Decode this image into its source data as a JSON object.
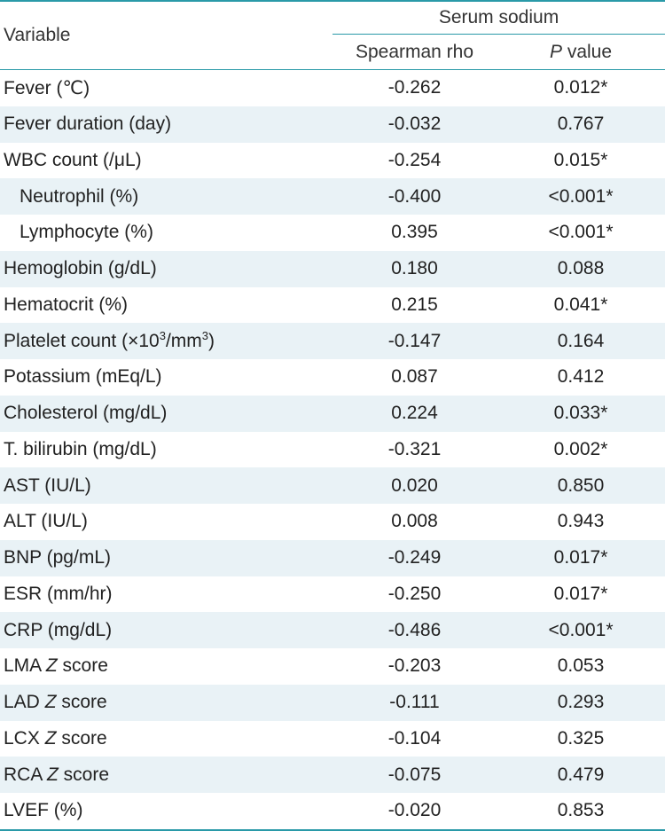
{
  "header": {
    "variable": "Variable",
    "group": "Serum sodium",
    "rho": "Spearman rho",
    "p_italic": "P",
    "p_rest": " value"
  },
  "rows": [
    {
      "pre": "Fever (℃)",
      "rho": "-0.262",
      "p": "0.012*"
    },
    {
      "pre": "Fever duration (day)",
      "rho": "-0.032",
      "p": "0.767"
    },
    {
      "pre": "WBC count (/μL)",
      "rho": "-0.254",
      "p": "0.015*"
    },
    {
      "pre": "Neutrophil (%)",
      "rho": "-0.400",
      "p": "<0.001*"
    },
    {
      "pre": "Lymphocyte (%)",
      "rho": "0.395",
      "p": "<0.001*"
    },
    {
      "pre": "Hemoglobin (g/dL)",
      "rho": "0.180",
      "p": "0.088"
    },
    {
      "pre": "Hematocrit (%)",
      "rho": "0.215",
      "p": "0.041*"
    },
    {
      "pre": "Platelet count (×10",
      "sup1": "3",
      "mid": "/mm",
      "sup2": "3",
      "post": ")",
      "rho": "-0.147",
      "p": "0.164"
    },
    {
      "pre": "Potassium (mEq/L)",
      "rho": "0.087",
      "p": "0.412"
    },
    {
      "pre": "Cholesterol (mg/dL)",
      "rho": "0.224",
      "p": "0.033*"
    },
    {
      "pre": "T. bilirubin (mg/dL)",
      "rho": "-0.321",
      "p": "0.002*"
    },
    {
      "pre": "AST (IU/L)",
      "rho": "0.020",
      "p": "0.850"
    },
    {
      "pre": "ALT (IU/L)",
      "rho": "0.008",
      "p": "0.943"
    },
    {
      "pre": "BNP (pg/mL)",
      "rho": "-0.249",
      "p": "0.017*"
    },
    {
      "pre": "ESR (mm/hr)",
      "rho": "-0.250",
      "p": "0.017*"
    },
    {
      "pre": "CRP (mg/dL)",
      "rho": "-0.486",
      "p": "<0.001*"
    },
    {
      "pre": "LMA ",
      "ital": "Z",
      "post": " score",
      "rho": "-0.203",
      "p": "0.053"
    },
    {
      "pre": "LAD ",
      "ital": "Z",
      "post": " score",
      "rho": "-0.111",
      "p": "0.293"
    },
    {
      "pre": "LCX ",
      "ital": "Z",
      "post": " score",
      "rho": "-0.104",
      "p": "0.325"
    },
    {
      "pre": "RCA ",
      "ital": "Z",
      "post": " score",
      "rho": "-0.075",
      "p": "0.479"
    },
    {
      "pre": "LVEF (%)",
      "rho": "-0.020",
      "p": "0.853"
    }
  ]
}
